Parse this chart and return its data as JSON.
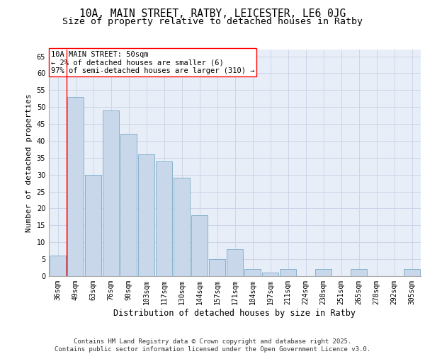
{
  "title1": "10A, MAIN STREET, RATBY, LEICESTER, LE6 0JG",
  "title2": "Size of property relative to detached houses in Ratby",
  "xlabel": "Distribution of detached houses by size in Ratby",
  "ylabel": "Number of detached properties",
  "categories": [
    "36sqm",
    "49sqm",
    "63sqm",
    "76sqm",
    "90sqm",
    "103sqm",
    "117sqm",
    "130sqm",
    "144sqm",
    "157sqm",
    "171sqm",
    "184sqm",
    "197sqm",
    "211sqm",
    "224sqm",
    "238sqm",
    "251sqm",
    "265sqm",
    "278sqm",
    "292sqm",
    "305sqm"
  ],
  "values": [
    6,
    53,
    30,
    49,
    42,
    36,
    34,
    29,
    18,
    5,
    8,
    2,
    1,
    2,
    0,
    2,
    0,
    2,
    0,
    0,
    2
  ],
  "bar_color": "#c8d8ea",
  "bar_edge_color": "#7aaac8",
  "grid_color": "#ccd6e8",
  "bg_color": "#e8eef8",
  "annotation_box_text": "10A MAIN STREET: 50sqm\n← 2% of detached houses are smaller (6)\n97% of semi-detached houses are larger (310) →",
  "ylim": [
    0,
    67
  ],
  "yticks": [
    0,
    5,
    10,
    15,
    20,
    25,
    30,
    35,
    40,
    45,
    50,
    55,
    60,
    65
  ],
  "footer_line1": "Contains HM Land Registry data © Crown copyright and database right 2025.",
  "footer_line2": "Contains public sector information licensed under the Open Government Licence v3.0.",
  "title1_fontsize": 10.5,
  "title2_fontsize": 9.5,
  "xlabel_fontsize": 8.5,
  "ylabel_fontsize": 8,
  "tick_fontsize": 7,
  "annotation_fontsize": 7.5,
  "footer_fontsize": 6.5
}
